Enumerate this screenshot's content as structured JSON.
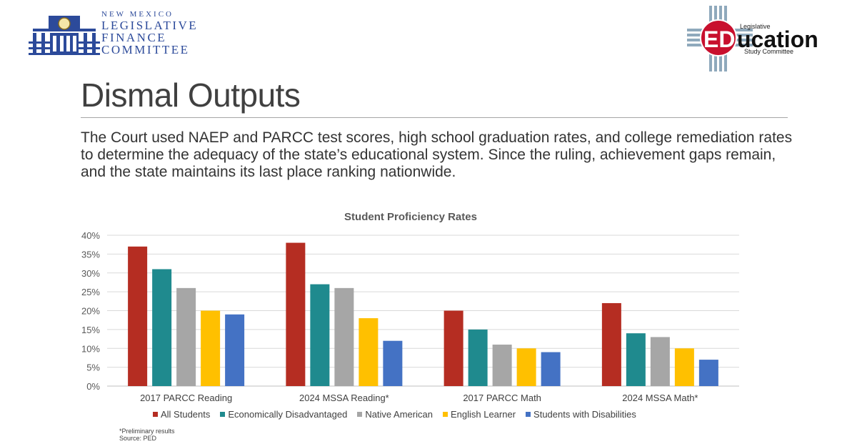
{
  "header": {
    "lfc_logo": {
      "line1": "NEW MEXICO",
      "line2": "LEGISLATIVE",
      "line3": "FINANCE",
      "line4": "COMMITTEE"
    },
    "lesc_logo": {
      "ed": "ED",
      "ucation": "ucation",
      "top_text": "Legislative",
      "bottom_text": "Study Committee"
    }
  },
  "title": "Dismal Outputs",
  "intro": "The Court used NAEP and PARCC test scores, high school graduation rates, and college remediation rates to determine the adequacy of the state’s educational system. Since the ruling, achievement gaps remain, and the state maintains its last place ranking nationwide.",
  "chart_data": {
    "type": "bar",
    "title": "Student Proficiency Rates",
    "categories": [
      "2017 PARCC Reading",
      "2024 MSSA Reading*",
      "2017 PARCC Math",
      "2024 MSSA Math*"
    ],
    "series": [
      {
        "name": "All Students",
        "color": "#b52d22",
        "values": [
          37,
          38,
          20,
          22
        ]
      },
      {
        "name": "Economically Disadvantaged",
        "color": "#1f8a8e",
        "values": [
          31,
          27,
          15,
          14
        ]
      },
      {
        "name": "Native American",
        "color": "#a6a6a6",
        "values": [
          26,
          26,
          11,
          13
        ]
      },
      {
        "name": "English Learner",
        "color": "#ffc000",
        "values": [
          20,
          18,
          10,
          10
        ]
      },
      {
        "name": "Students with Disabilities",
        "color": "#4472c4",
        "values": [
          19,
          12,
          9,
          7
        ]
      }
    ],
    "yticks": [
      "0%",
      "5%",
      "10%",
      "15%",
      "20%",
      "25%",
      "30%",
      "35%",
      "40%"
    ],
    "ylim": [
      0,
      40
    ],
    "grid": true,
    "legend_position": "bottom"
  },
  "footnote": {
    "line1": "*Preliminary results",
    "line2": "Source: PED"
  }
}
